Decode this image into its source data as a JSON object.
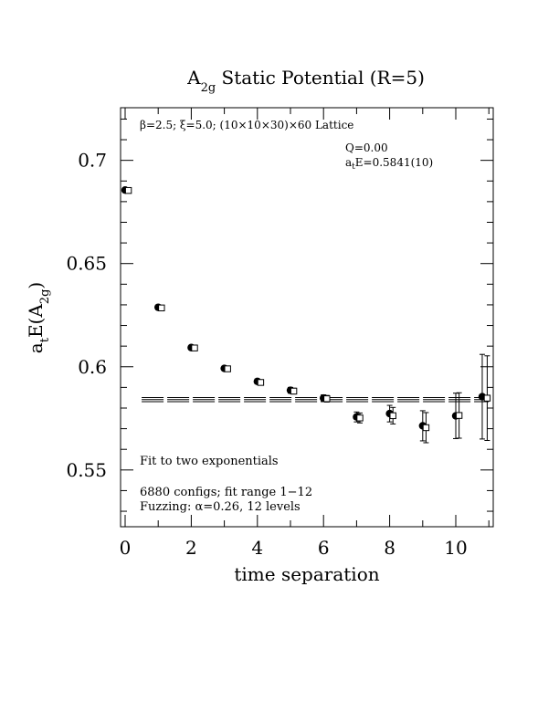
{
  "chart_data": {
    "type": "scatter",
    "title": {
      "main": "A",
      "sub": "2g",
      "rest": " Static Potential (R=5)"
    },
    "xlabel": "time separation",
    "ylabel": {
      "pre": "a",
      "sub1": "t",
      "mid": "E(A",
      "sub2": "2g",
      "post": ")"
    },
    "xlim": [
      0,
      11
    ],
    "ylim": [
      0.5225,
      0.7255
    ],
    "x_ticks": [
      {
        "value": 0,
        "label": "0"
      },
      {
        "value": 2,
        "label": "2"
      },
      {
        "value": 4,
        "label": "4"
      },
      {
        "value": 6,
        "label": "6"
      },
      {
        "value": 8,
        "label": "8"
      },
      {
        "value": 10,
        "label": "10"
      }
    ],
    "y_ticks": [
      {
        "value": 0.55,
        "label": "0.55"
      },
      {
        "value": 0.6,
        "label": "0.6"
      },
      {
        "value": 0.65,
        "label": "0.65"
      },
      {
        "value": 0.7,
        "label": "0.7"
      }
    ],
    "annotations": {
      "lattice": "β=2.5; ξ=5.0; (10×10×30)×60 Lattice",
      "q": "Q=0.00",
      "energy": {
        "pre": "a",
        "sub": "t",
        "post": "E=0.5841(10)"
      },
      "fit": "Fit to two exponentials",
      "configs": "6880 configs; fit range 1−12",
      "fuzzing": "Fuzzing: α=0.26, 12 levels"
    },
    "fit": {
      "value": 0.5841,
      "error": 0.001,
      "x_start": 0.5,
      "x_end": 11
    },
    "series": [
      {
        "marker": "filled-circle",
        "points": [
          {
            "x": 0,
            "y": 0.6856,
            "err": 0.0006
          },
          {
            "x": 1,
            "y": 0.6288,
            "err": 0.0008
          },
          {
            "x": 2,
            "y": 0.6093,
            "err": 0.0009
          },
          {
            "x": 3,
            "y": 0.5992,
            "err": 0.001
          },
          {
            "x": 4,
            "y": 0.5929,
            "err": 0.0012
          },
          {
            "x": 5,
            "y": 0.5886,
            "err": 0.0014
          },
          {
            "x": 6,
            "y": 0.5848,
            "err": 0.0016
          },
          {
            "x": 7,
            "y": 0.5757,
            "err": 0.0024
          },
          {
            "x": 8,
            "y": 0.5773,
            "err": 0.004
          },
          {
            "x": 9,
            "y": 0.5714,
            "err": 0.0073
          },
          {
            "x": 10,
            "y": 0.5762,
            "err": 0.011
          },
          {
            "x": 10.8,
            "y": 0.5855,
            "err": 0.0205
          }
        ]
      },
      {
        "marker": "open-square",
        "points": [
          {
            "x": 0.1,
            "y": 0.6854,
            "err": 0.0006
          },
          {
            "x": 1.1,
            "y": 0.6285,
            "err": 0.0008
          },
          {
            "x": 2.1,
            "y": 0.6091,
            "err": 0.0009
          },
          {
            "x": 3.1,
            "y": 0.599,
            "err": 0.001
          },
          {
            "x": 4.1,
            "y": 0.5924,
            "err": 0.0012
          },
          {
            "x": 5.1,
            "y": 0.5882,
            "err": 0.0014
          },
          {
            "x": 6.1,
            "y": 0.5845,
            "err": 0.0016
          },
          {
            "x": 7.1,
            "y": 0.5752,
            "err": 0.0024
          },
          {
            "x": 8.1,
            "y": 0.5763,
            "err": 0.004
          },
          {
            "x": 9.1,
            "y": 0.5705,
            "err": 0.0073
          },
          {
            "x": 10.1,
            "y": 0.5764,
            "err": 0.011
          },
          {
            "x": 10.95,
            "y": 0.5848,
            "err": 0.0205
          }
        ]
      }
    ]
  }
}
